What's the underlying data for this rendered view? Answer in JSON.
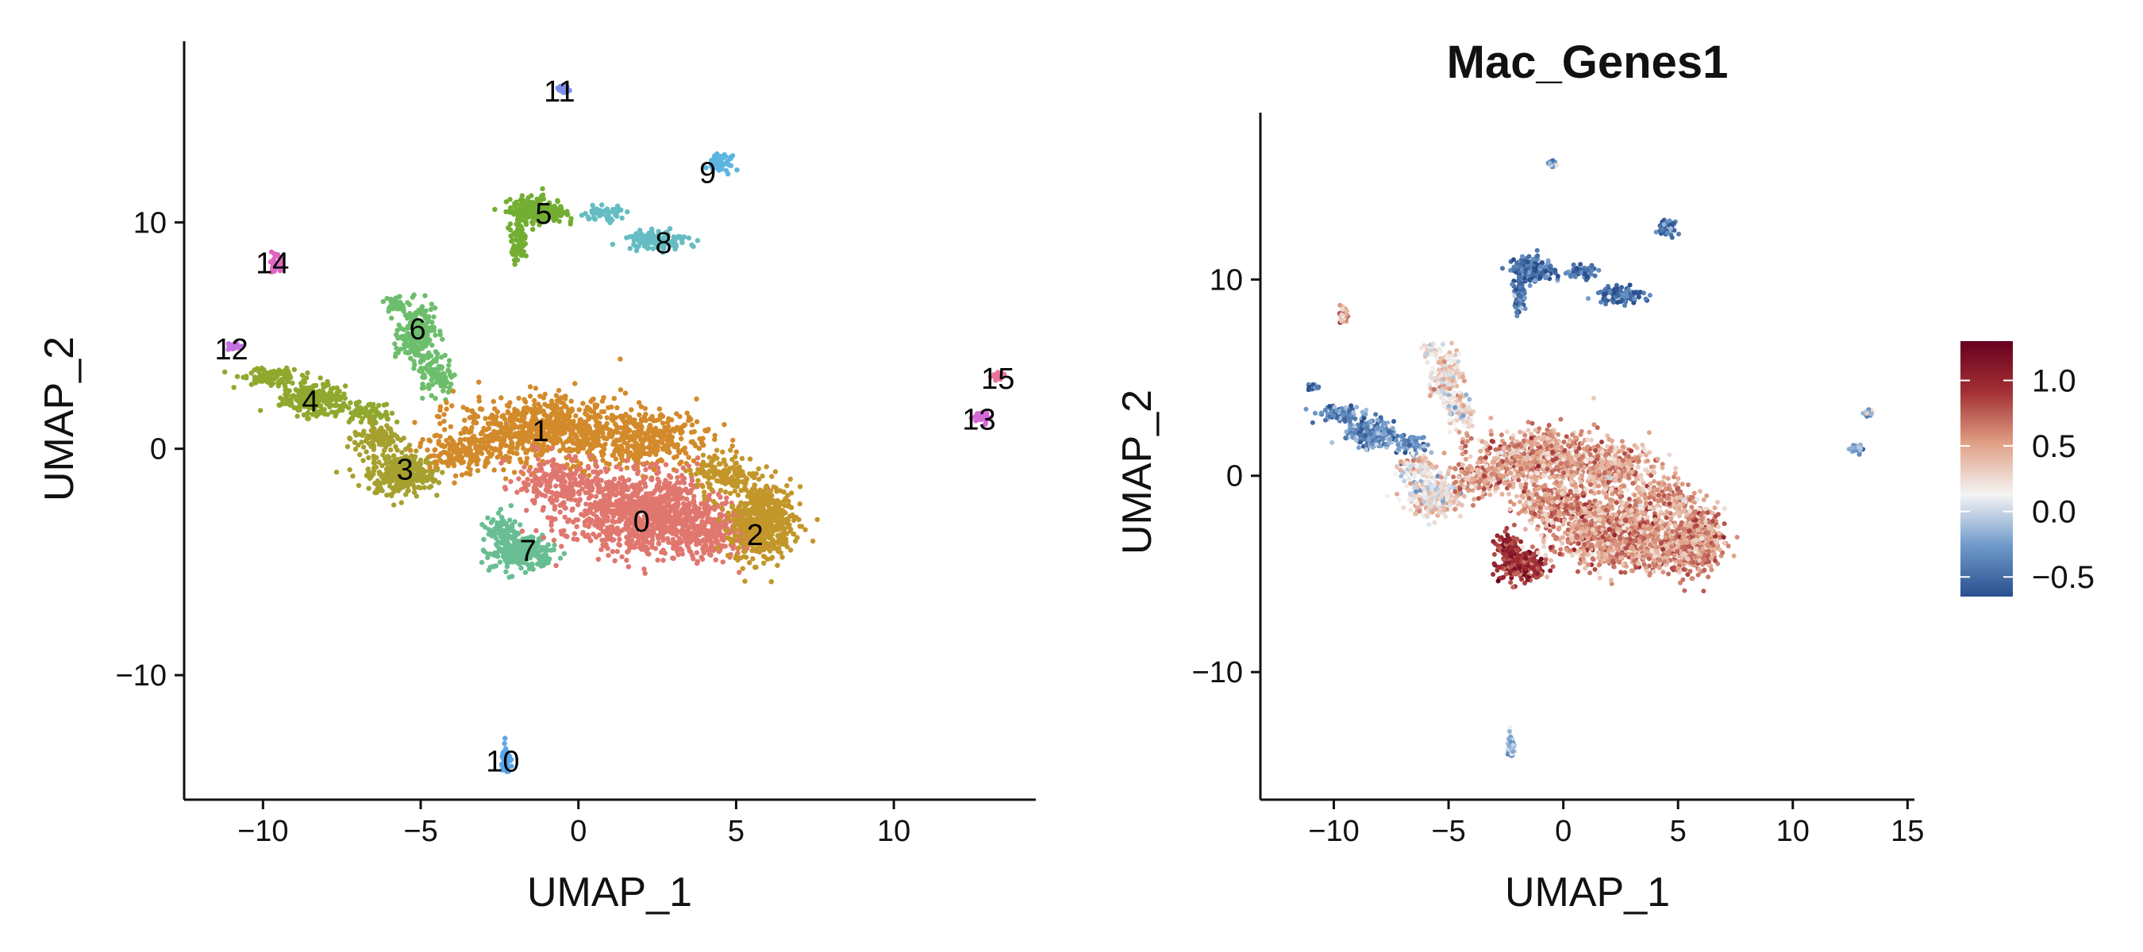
{
  "chart_data": [
    {
      "type": "scatter",
      "title": "",
      "xlabel": "UMAP_1",
      "ylabel": "UMAP_2",
      "xlim": [
        -12.5,
        14.5
      ],
      "ylim": [
        -15.5,
        18
      ],
      "xticks": [
        -10,
        -5,
        0,
        5,
        10
      ],
      "yticks": [
        -10,
        0,
        10
      ],
      "xtick_labels": [
        "−10",
        "−5",
        "0",
        "5",
        "10"
      ],
      "ytick_labels": [
        "−10",
        "0",
        "10"
      ],
      "grid": false,
      "legend": "none",
      "colors": {
        "0": "#E0776F",
        "1": "#D38A2A",
        "2": "#C3962A",
        "3": "#A6A12F",
        "4": "#90A82E",
        "5": "#73AE33",
        "6": "#6DBE6C",
        "7": "#68BE92",
        "8": "#65BCC2",
        "9": "#5DB5E0",
        "10": "#5BA6E6",
        "11": "#7D8FE8",
        "12": "#C473E0",
        "13": "#D767D7",
        "14": "#DE66C0",
        "15": "#E8749E"
      },
      "clusters": [
        {
          "label": "0",
          "x": 2.0,
          "y": -3.2
        },
        {
          "label": "1",
          "x": -1.2,
          "y": 0.8
        },
        {
          "label": "2",
          "x": 5.6,
          "y": -3.8
        },
        {
          "label": "3",
          "x": -5.5,
          "y": -0.9
        },
        {
          "label": "4",
          "x": -8.5,
          "y": 2.1
        },
        {
          "label": "5",
          "x": -1.1,
          "y": 10.4
        },
        {
          "label": "6",
          "x": -5.1,
          "y": 5.3
        },
        {
          "label": "7",
          "x": -1.6,
          "y": -4.5
        },
        {
          "label": "8",
          "x": 2.7,
          "y": 9.1
        },
        {
          "label": "9",
          "x": 4.1,
          "y": 12.2
        },
        {
          "label": "10",
          "x": -2.4,
          "y": -13.8
        },
        {
          "label": "11",
          "x": -0.6,
          "y": 15.8
        },
        {
          "label": "12",
          "x": -11.0,
          "y": 4.4
        },
        {
          "label": "13",
          "x": 12.7,
          "y": 1.3
        },
        {
          "label": "14",
          "x": -9.7,
          "y": 8.2
        },
        {
          "label": "15",
          "x": 13.3,
          "y": 3.1
        }
      ]
    },
    {
      "type": "scatter",
      "title": "Mac_Genes1",
      "xlabel": "UMAP_1",
      "ylabel": "UMAP_2",
      "xlim": [
        -13.2,
        15.3
      ],
      "ylim": [
        -16.5,
        18.5
      ],
      "xticks": [
        -10,
        -5,
        0,
        5,
        10,
        15
      ],
      "yticks": [
        -10,
        0,
        10
      ],
      "xtick_labels": [
        "−10",
        "−5",
        "0",
        "5",
        "10",
        "15"
      ],
      "ytick_labels": [
        "−10",
        "0",
        "10"
      ],
      "grid": false,
      "legend": "right",
      "colorbar": {
        "min": -0.65,
        "max": 1.3,
        "ticks": [
          -0.5,
          0.0,
          0.5,
          1.0
        ],
        "tick_labels": [
          "−0.5",
          "0.0",
          "0.5",
          "1.0"
        ],
        "colors": [
          "#2A4F8E",
          "#6F9ACA",
          "#F4F4F4",
          "#E0A085",
          "#A33034",
          "#67001F"
        ]
      },
      "regions": [
        {
          "name": "cluster-0",
          "value": 0.55
        },
        {
          "name": "cluster-1",
          "value": 0.5
        },
        {
          "name": "cluster-2",
          "value": 0.55
        },
        {
          "name": "cluster-3",
          "value": 0.2
        },
        {
          "name": "cluster-4",
          "value": -0.35
        },
        {
          "name": "cluster-5",
          "value": -0.45
        },
        {
          "name": "cluster-6",
          "value": 0.2
        },
        {
          "name": "cluster-7",
          "value": 0.95
        },
        {
          "name": "cluster-8",
          "value": -0.5
        },
        {
          "name": "cluster-9",
          "value": -0.5
        },
        {
          "name": "cluster-10",
          "value": -0.1
        },
        {
          "name": "cluster-11",
          "value": -0.2
        },
        {
          "name": "cluster-12",
          "value": -0.4
        },
        {
          "name": "cluster-13",
          "value": -0.1
        },
        {
          "name": "cluster-14",
          "value": 0.45
        },
        {
          "name": "cluster-15",
          "value": -0.1
        }
      ]
    }
  ]
}
